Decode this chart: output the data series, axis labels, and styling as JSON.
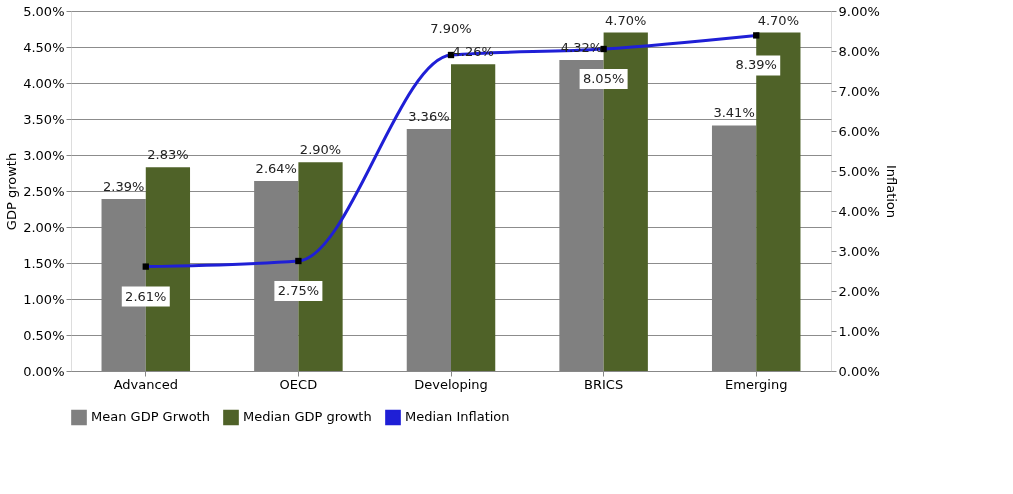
{
  "chart_data": {
    "type": "bar",
    "ylabel": "GDP growth",
    "y2label": "Inflation",
    "categories": [
      "Advanced",
      "OECD",
      "Developing",
      "BRICS",
      "Emerging"
    ],
    "series": [
      {
        "name": "Mean GDP Grwoth",
        "color": "#808080",
        "values": [
          2.39,
          2.64,
          3.36,
          4.32,
          3.41
        ],
        "value_labels": [
          "2.39%",
          "2.64%",
          "3.36%",
          "4.32%",
          "3.41%"
        ]
      },
      {
        "name": "Median GDP growth",
        "color": "#4f6228",
        "values": [
          2.83,
          2.9,
          4.26,
          4.7,
          4.7
        ],
        "value_labels": [
          "2.83%",
          "2.90%",
          "4.26%",
          "4.70%",
          "4.70%"
        ]
      },
      {
        "name": "Median Inflation",
        "type": "line",
        "axis": "y2",
        "color": "#1f1fd6",
        "marker": "square",
        "values": [
          2.61,
          2.75,
          7.9,
          8.05,
          8.39
        ],
        "value_labels": [
          "2.61%",
          "2.75%",
          "7.90%",
          "8.05%",
          "8.39%"
        ]
      }
    ],
    "ylim": [
      0,
      5
    ],
    "yticks": [
      {
        "value": 0,
        "label": "0.00%"
      },
      {
        "value": 0.5,
        "label": "0.50%"
      },
      {
        "value": 1,
        "label": "1.00%"
      },
      {
        "value": 1.5,
        "label": "1.50%"
      },
      {
        "value": 2,
        "label": "2.00%"
      },
      {
        "value": 2.5,
        "label": "2.50%"
      },
      {
        "value": 3,
        "label": "3.00%"
      },
      {
        "value": 3.5,
        "label": "3.50%"
      },
      {
        "value": 4,
        "label": "4.00%"
      },
      {
        "value": 4.5,
        "label": "4.50%"
      },
      {
        "value": 5,
        "label": "5.00%"
      }
    ],
    "y2lim": [
      0,
      9
    ],
    "y2ticks": [
      {
        "value": 0,
        "label": "0.00%"
      },
      {
        "value": 1,
        "label": "1.00%"
      },
      {
        "value": 2,
        "label": "2.00%"
      },
      {
        "value": 3,
        "label": "3.00%"
      },
      {
        "value": 4,
        "label": "4.00%"
      },
      {
        "value": 5,
        "label": "5.00%"
      },
      {
        "value": 6,
        "label": "6.00%"
      },
      {
        "value": 7,
        "label": "7.00%"
      },
      {
        "value": 8,
        "label": "8.00%"
      },
      {
        "value": 9,
        "label": "9.00%"
      }
    ],
    "grid": "y",
    "legend": "bottom"
  }
}
